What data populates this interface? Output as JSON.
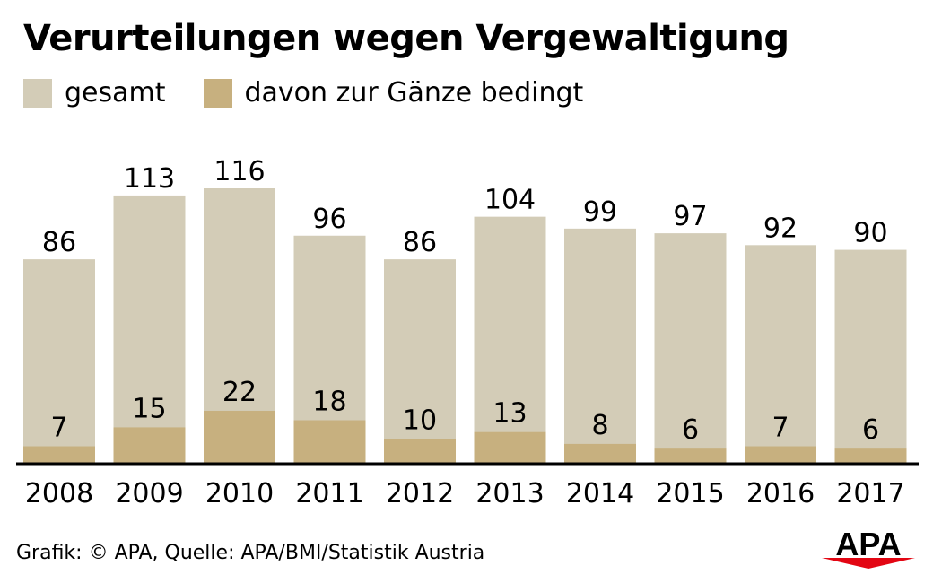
{
  "chart_data": {
    "type": "bar",
    "title": "Verurteilungen wegen Vergewaltigung",
    "categories": [
      "2008",
      "2009",
      "2010",
      "2011",
      "2012",
      "2013",
      "2014",
      "2015",
      "2016",
      "2017"
    ],
    "series": [
      {
        "name": "gesamt",
        "color": "#d3ccb7",
        "values": [
          86,
          113,
          116,
          96,
          86,
          104,
          99,
          97,
          92,
          90
        ]
      },
      {
        "name": "davon zur Gänze bedingt",
        "color": "#c7b07f",
        "values": [
          7,
          15,
          22,
          18,
          10,
          13,
          8,
          6,
          7,
          6
        ]
      }
    ],
    "ylim": [
      0,
      116
    ],
    "grid": false,
    "legend_position": "top-left",
    "bars_overlaid": true
  },
  "source": "Grafik: © APA, Quelle: APA/BMI/Statistik Austria",
  "logo": {
    "text": "APA",
    "color": "#000000",
    "accent_color": "#e30613"
  }
}
